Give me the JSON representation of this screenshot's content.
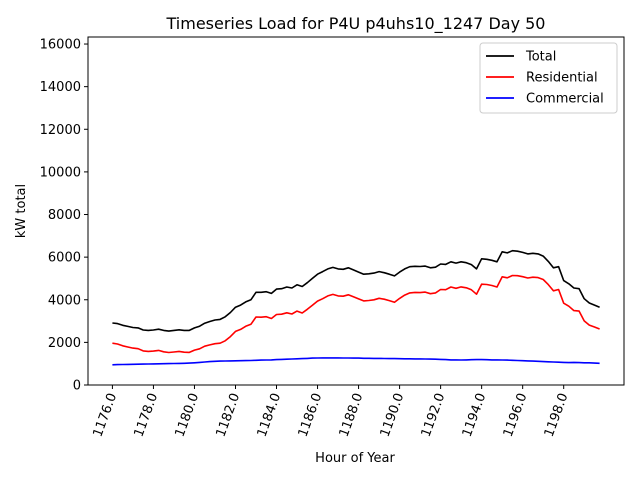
{
  "chart_data": {
    "type": "line",
    "title": "Timeseries Load for P4U p4uhs10_1247  Day 50",
    "xlabel": "Hour of Year",
    "ylabel": "kW total",
    "xlim": [
      1174.81,
      1200.94
    ],
    "ylim": [
      0,
      16330
    ],
    "x_start": 1176.0,
    "x_step": 0.25,
    "xticks": [
      1176.0,
      1178.0,
      1180.0,
      1182.0,
      1184.0,
      1186.0,
      1188.0,
      1190.0,
      1192.0,
      1194.0,
      1196.0,
      1198.0
    ],
    "xtick_labels": [
      "1176.0",
      "1178.0",
      "1180.0",
      "1182.0",
      "1184.0",
      "1186.0",
      "1188.0",
      "1190.0",
      "1192.0",
      "1194.0",
      "1196.0",
      "1198.0"
    ],
    "yticks": [
      0,
      2000,
      4000,
      6000,
      8000,
      10000,
      12000,
      14000,
      16000
    ],
    "ytick_labels": [
      "0",
      "2000",
      "4000",
      "6000",
      "8000",
      "10000",
      "12000",
      "14000",
      "16000"
    ],
    "grid": false,
    "legend_position": "top-right",
    "series": [
      {
        "name": "Total",
        "color": "#000000",
        "values": [
          2910,
          2880,
          2800,
          2750,
          2700,
          2680,
          2580,
          2560,
          2580,
          2620,
          2560,
          2530,
          2560,
          2590,
          2560,
          2560,
          2680,
          2760,
          2900,
          2980,
          3050,
          3080,
          3200,
          3400,
          3650,
          3750,
          3900,
          4000,
          4350,
          4350,
          4380,
          4300,
          4500,
          4520,
          4600,
          4550,
          4700,
          4620,
          4800,
          5000,
          5200,
          5320,
          5450,
          5520,
          5450,
          5430,
          5500,
          5400,
          5300,
          5200,
          5220,
          5250,
          5320,
          5270,
          5200,
          5120,
          5300,
          5450,
          5550,
          5570,
          5560,
          5580,
          5500,
          5530,
          5680,
          5660,
          5780,
          5720,
          5780,
          5740,
          5650,
          5450,
          5920,
          5900,
          5850,
          5780,
          6250,
          6200,
          6300,
          6280,
          6220,
          6150,
          6180,
          6150,
          6050,
          5800,
          5500,
          5550,
          4900,
          4750,
          4550,
          4520,
          4050,
          3850,
          3750,
          3650
        ]
      },
      {
        "name": "Residential",
        "color": "#ff0000",
        "values": [
          1960,
          1925,
          1840,
          1785,
          1730,
          1705,
          1600,
          1575,
          1590,
          1625,
          1560,
          1525,
          1550,
          1575,
          1540,
          1530,
          1640,
          1700,
          1820,
          1880,
          1940,
          1960,
          2075,
          2270,
          2515,
          2610,
          2755,
          2850,
          3190,
          3180,
          3205,
          3120,
          3310,
          3320,
          3390,
          3330,
          3470,
          3380,
          3550,
          3740,
          3935,
          4050,
          4180,
          4250,
          4180,
          4165,
          4235,
          4140,
          4040,
          3945,
          3965,
          4000,
          4070,
          4025,
          3960,
          3880,
          4065,
          4220,
          4320,
          4345,
          4335,
          4360,
          4285,
          4320,
          4480,
          4470,
          4600,
          4540,
          4605,
          4560,
          4465,
          4260,
          4730,
          4715,
          4670,
          4600,
          5075,
          5030,
          5140,
          5130,
          5080,
          5020,
          5060,
          5040,
          4950,
          4710,
          4420,
          4480,
          3840,
          3700,
          3490,
          3470,
          3010,
          2810,
          2720,
          2630
        ]
      },
      {
        "name": "Commercial",
        "color": "#0000ff",
        "values": [
          950,
          955,
          960,
          965,
          970,
          975,
          980,
          985,
          990,
          995,
          1000,
          1005,
          1010,
          1015,
          1020,
          1030,
          1040,
          1060,
          1080,
          1100,
          1110,
          1120,
          1125,
          1130,
          1135,
          1140,
          1145,
          1150,
          1160,
          1170,
          1175,
          1180,
          1190,
          1200,
          1210,
          1220,
          1230,
          1240,
          1250,
          1260,
          1265,
          1270,
          1270,
          1270,
          1270,
          1265,
          1265,
          1260,
          1260,
          1255,
          1255,
          1250,
          1250,
          1245,
          1240,
          1240,
          1235,
          1230,
          1230,
          1225,
          1225,
          1220,
          1215,
          1210,
          1200,
          1190,
          1180,
          1180,
          1175,
          1180,
          1185,
          1190,
          1190,
          1185,
          1180,
          1180,
          1175,
          1170,
          1160,
          1150,
          1140,
          1130,
          1120,
          1110,
          1100,
          1090,
          1080,
          1070,
          1060,
          1050,
          1060,
          1050,
          1040,
          1040,
          1030,
          1020
        ]
      }
    ]
  }
}
